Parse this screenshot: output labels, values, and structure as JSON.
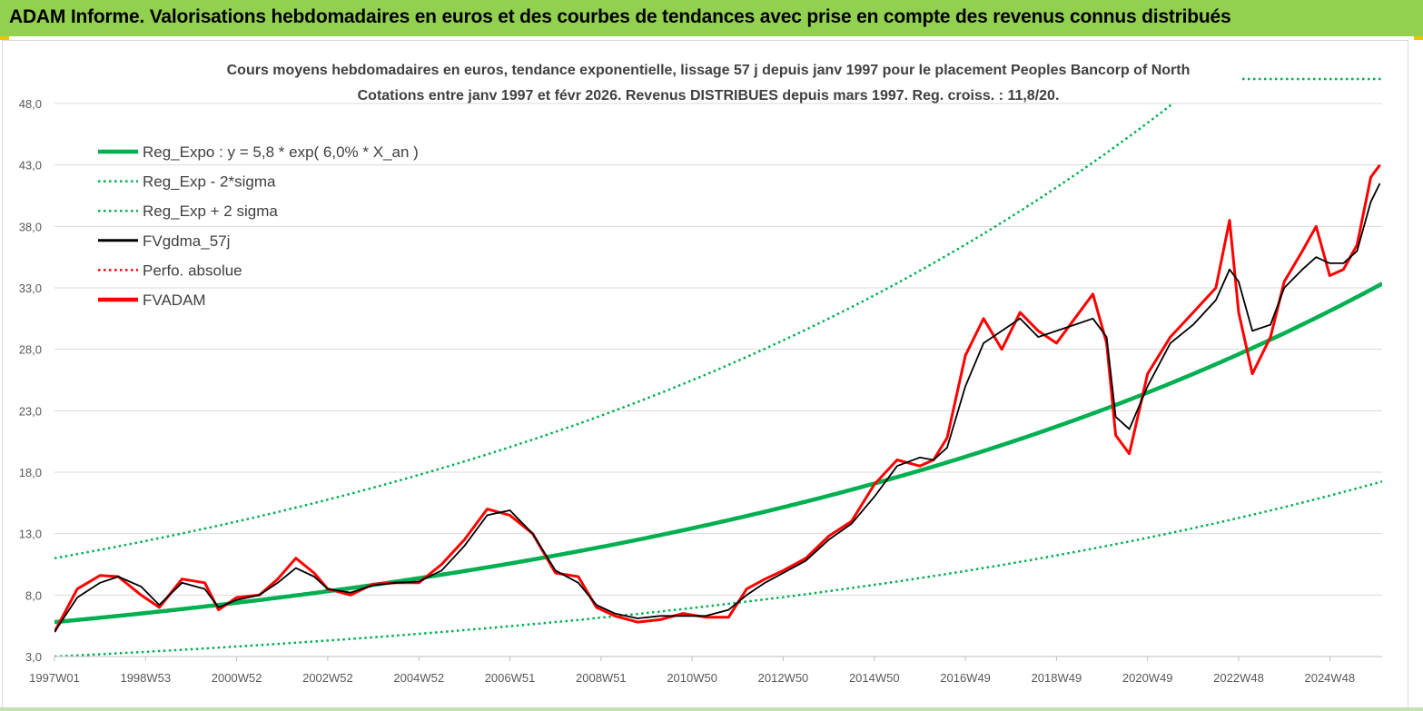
{
  "header": {
    "title": "ADAM Informe. Valorisations hebdomadaires en euros et des courbes de tendances avec prise en compte des revenus connus distribués"
  },
  "chart_data": {
    "type": "line",
    "title": "Cours moyens hebdomadaires en euros, tendance exponentielle, lissage 57 j depuis janv 1997 pour le placement Peoples Bancorp of North",
    "subtitle": "Cotations entre janv 1997 et févr 2026. Revenus DISTRIBUES depuis mars 1997. Reg. croiss. : 11,8/20.",
    "xlabel": "",
    "ylabel": "",
    "x_start": "1997W01",
    "x_end": "2026W06",
    "ylim": [
      3.0,
      48.0
    ],
    "y_ticks": [
      "48,0",
      "43,0",
      "38,0",
      "33,0",
      "28,0",
      "23,0",
      "18,0",
      "13,0",
      "8,0",
      "3,0"
    ],
    "x_ticks": [
      {
        "label": "1997W01",
        "year": 1997.0
      },
      {
        "label": "1998W53",
        "year": 1999.0
      },
      {
        "label": "2000W52",
        "year": 2001.0
      },
      {
        "label": "2002W52",
        "year": 2003.0
      },
      {
        "label": "2004W52",
        "year": 2005.0
      },
      {
        "label": "2006W51",
        "year": 2007.0
      },
      {
        "label": "2008W51",
        "year": 2009.0
      },
      {
        "label": "2010W50",
        "year": 2011.0
      },
      {
        "label": "2012W50",
        "year": 2013.0
      },
      {
        "label": "2014W50",
        "year": 2015.0
      },
      {
        "label": "2016W49",
        "year": 2017.0
      },
      {
        "label": "2018W49",
        "year": 2019.0
      },
      {
        "label": "2020W49",
        "year": 2021.0
      },
      {
        "label": "2022W48",
        "year": 2023.0
      },
      {
        "label": "2024W48",
        "year": 2025.0
      }
    ],
    "legend_position": "top-left",
    "grid": true,
    "series": [
      {
        "name": "Reg_Expo : y = 5,8 * exp( 6,0% *  X_an )",
        "color": "#00b050",
        "style": "solid-thick",
        "kind": "regression",
        "a": 5.8,
        "rate": 0.06
      },
      {
        "name": "Reg_Exp - 2*sigma",
        "color": "#00b050",
        "style": "dotted",
        "kind": "regression",
        "a": 3.0,
        "rate": 0.06
      },
      {
        "name": "Reg_Exp + 2 sigma",
        "color": "#00b050",
        "style": "dotted",
        "kind": "regression",
        "a": 11.0,
        "rate": 0.06
      },
      {
        "name": "FVgdma_57j",
        "color": "#000000",
        "style": "solid",
        "kind": "data"
      },
      {
        "name": "Perfo. absolue",
        "color": "#ff0000",
        "style": "dotted",
        "kind": "data"
      },
      {
        "name": "FVADAM",
        "color": "#ff0000",
        "style": "solid-thick",
        "kind": "data"
      }
    ],
    "x_years": [
      1997.0,
      1997.5,
      1998.0,
      1998.4,
      1998.9,
      1999.3,
      1999.8,
      2000.3,
      2000.6,
      2001.0,
      2001.5,
      2001.9,
      2002.3,
      2002.7,
      2003.0,
      2003.5,
      2004.0,
      2004.5,
      2005.0,
      2005.5,
      2006.0,
      2006.5,
      2007.0,
      2007.5,
      2008.0,
      2008.5,
      2008.9,
      2009.3,
      2009.8,
      2010.3,
      2010.8,
      2011.3,
      2011.8,
      2012.2,
      2012.6,
      2013.0,
      2013.5,
      2014.0,
      2014.5,
      2015.0,
      2015.5,
      2016.0,
      2016.3,
      2016.6,
      2017.0,
      2017.4,
      2017.8,
      2018.2,
      2018.6,
      2019.0,
      2019.4,
      2019.8,
      2020.1,
      2020.3,
      2020.6,
      2021.0,
      2021.5,
      2022.0,
      2022.5,
      2022.8,
      2023.0,
      2023.3,
      2023.7,
      2024.0,
      2024.4,
      2024.7,
      2025.0,
      2025.3,
      2025.6,
      2025.9,
      2026.1
    ],
    "fvgdma_57j": [
      5.0,
      7.8,
      9.0,
      9.5,
      8.7,
      7.2,
      9.0,
      8.5,
      7.0,
      7.6,
      8.0,
      9.0,
      10.2,
      9.5,
      8.5,
      8.2,
      8.8,
      9.0,
      9.1,
      10.0,
      12.0,
      14.5,
      14.9,
      13.0,
      10.0,
      9.0,
      7.2,
      6.5,
      6.1,
      6.3,
      6.3,
      6.3,
      6.8,
      8.0,
      9.0,
      9.8,
      10.8,
      12.5,
      13.8,
      16.0,
      18.5,
      19.2,
      19.0,
      20.0,
      25.0,
      28.5,
      29.5,
      30.5,
      29.0,
      29.5,
      30.0,
      30.5,
      29.0,
      22.5,
      21.5,
      25.0,
      28.5,
      30.0,
      32.0,
      34.5,
      33.5,
      29.5,
      30.0,
      33.0,
      34.5,
      35.5,
      35.0,
      35.0,
      36.0,
      40.0,
      41.5
    ],
    "fvadam": [
      5.0,
      8.5,
      9.6,
      9.5,
      8.0,
      7.0,
      9.3,
      9.0,
      6.8,
      7.8,
      8.0,
      9.3,
      11.0,
      9.8,
      8.5,
      8.0,
      8.9,
      9.0,
      9.0,
      10.5,
      12.5,
      15.0,
      14.5,
      13.0,
      9.8,
      9.5,
      7.0,
      6.3,
      5.8,
      6.0,
      6.5,
      6.2,
      6.2,
      8.5,
      9.3,
      10.0,
      11.0,
      12.8,
      14.0,
      17.0,
      19.0,
      18.5,
      19.0,
      20.8,
      27.5,
      30.5,
      28.0,
      31.0,
      29.5,
      28.5,
      30.5,
      32.5,
      28.5,
      21.0,
      19.5,
      26.0,
      29.0,
      31.0,
      33.0,
      38.5,
      31.0,
      26.0,
      29.0,
      33.5,
      36.0,
      38.0,
      34.0,
      34.5,
      36.5,
      42.0,
      43.0
    ]
  }
}
